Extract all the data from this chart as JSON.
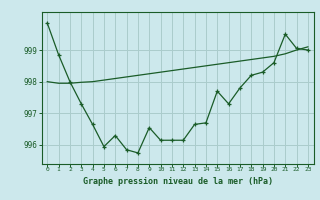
{
  "title": "Graphe pression niveau de la mer (hPa)",
  "background_color": "#cce8ec",
  "grid_color": "#aacccc",
  "line_color": "#1a5c28",
  "hours": [
    0,
    1,
    2,
    3,
    4,
    5,
    6,
    7,
    8,
    9,
    10,
    11,
    12,
    13,
    14,
    15,
    16,
    17,
    18,
    19,
    20,
    21,
    22,
    23
  ],
  "pressure": [
    999.85,
    998.85,
    998.0,
    997.3,
    996.65,
    995.95,
    996.3,
    995.85,
    995.75,
    996.55,
    996.15,
    996.15,
    996.15,
    996.65,
    996.7,
    997.7,
    997.3,
    997.8,
    998.2,
    998.3,
    998.6,
    999.5,
    999.05,
    999.0
  ],
  "trend": [
    998.0,
    997.95,
    997.95,
    997.98,
    998.0,
    998.05,
    998.1,
    998.15,
    998.2,
    998.25,
    998.3,
    998.35,
    998.4,
    998.45,
    998.5,
    998.55,
    998.6,
    998.65,
    998.7,
    998.75,
    998.8,
    998.88,
    999.0,
    999.1
  ],
  "ylim": [
    995.4,
    1000.2
  ],
  "yticks": [
    996,
    997,
    998,
    999
  ],
  "xlim": [
    -0.5,
    23.5
  ]
}
